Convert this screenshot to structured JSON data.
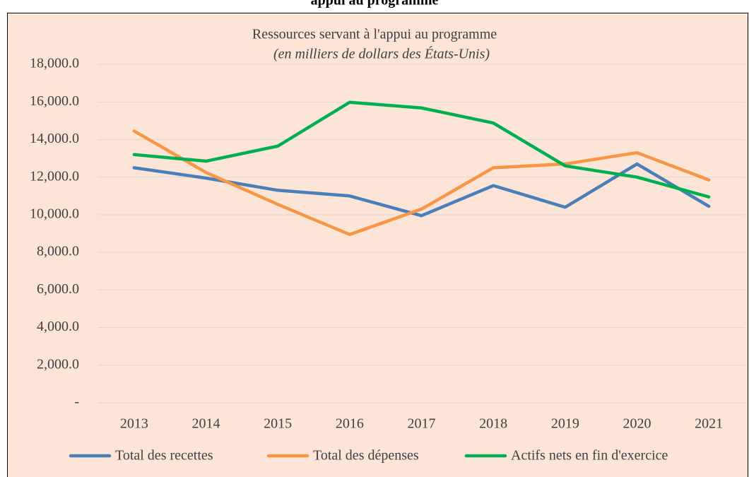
{
  "heading": "appui au programme",
  "chart_data": {
    "type": "line",
    "title": "Ressources servant à l'appui au programme",
    "subtitle": "(en milliers de dollars des États-Unis)",
    "categories": [
      "2013",
      "2014",
      "2015",
      "2016",
      "2017",
      "2018",
      "2019",
      "2020",
      "2021"
    ],
    "series": [
      {
        "name": "Total des recettes",
        "color": "#4a7ebb",
        "values": [
          12500,
          11950,
          11300,
          11000,
          9950,
          11550,
          10400,
          12700,
          10450
        ]
      },
      {
        "name": "Total des dépenses",
        "color": "#f79646",
        "values": [
          14450,
          12250,
          10550,
          8950,
          10300,
          12500,
          12700,
          13300,
          11850
        ]
      },
      {
        "name": "Actifs nets en fin d'exercice",
        "color": "#00b050",
        "values": [
          13200,
          12850,
          13650,
          15980,
          15680,
          14880,
          12600,
          12000,
          10950
        ]
      }
    ],
    "ylim": [
      0,
      18000
    ],
    "yticks": [
      {
        "value": 0,
        "label": "-"
      },
      {
        "value": 2000,
        "label": "2,000.0"
      },
      {
        "value": 4000,
        "label": "4,000.0"
      },
      {
        "value": 6000,
        "label": "6,000.0"
      },
      {
        "value": 8000,
        "label": "8,000.0"
      },
      {
        "value": 10000,
        "label": "10,000.0"
      },
      {
        "value": 12000,
        "label": "12,000.0"
      },
      {
        "value": 14000,
        "label": "14,000.0"
      },
      {
        "value": 16000,
        "label": "16,000.0"
      },
      {
        "value": 18000,
        "label": "18,000.0"
      }
    ],
    "grid": true,
    "legend": "bottom"
  }
}
